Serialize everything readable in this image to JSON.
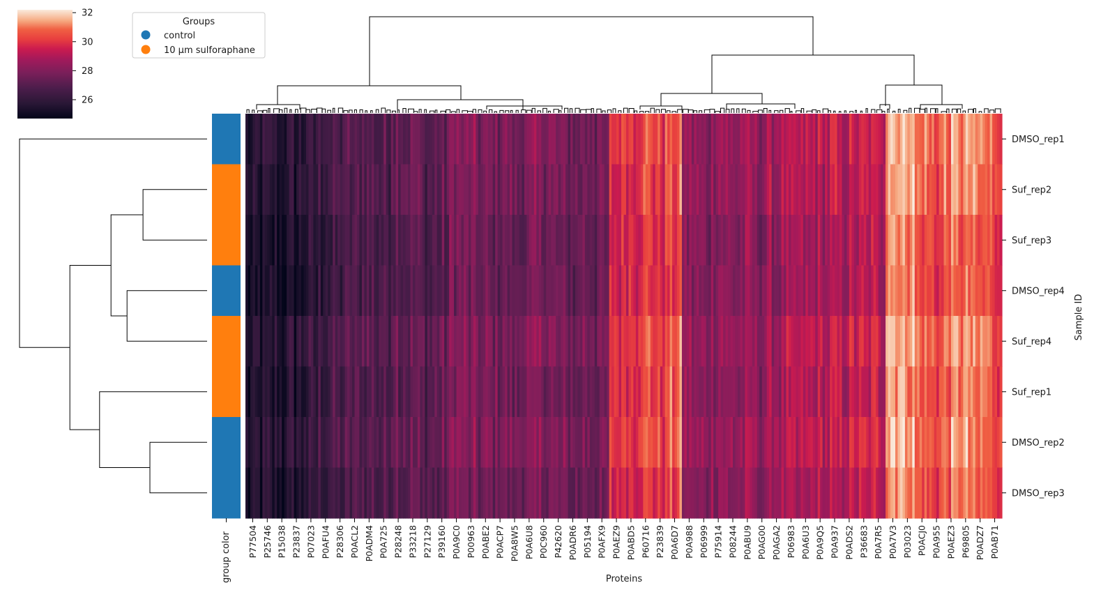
{
  "chart_data": {
    "type": "heatmap",
    "title": "",
    "xlabel": "Proteins",
    "ylabel": "Sample ID",
    "row_color_label": "group color",
    "rows": [
      "DMSO_rep1",
      "Suf_rep2",
      "Suf_rep3",
      "DMSO_rep4",
      "Suf_rep4",
      "Suf_rep1",
      "DMSO_rep2",
      "DMSO_rep3"
    ],
    "row_groups": [
      "control",
      "10 µm sulforaphane",
      "10 µm sulforaphane",
      "control",
      "10 µm sulforaphane",
      "10 µm sulforaphane",
      "control",
      "control"
    ],
    "x_tick_labels": [
      "P77504",
      "P25746",
      "P15038",
      "P23837",
      "P07023",
      "P0AFU4",
      "P28306",
      "P0ACL2",
      "P0ADM4",
      "P0A725",
      "P28248",
      "P33218",
      "P27129",
      "P39160",
      "P0A9C0",
      "P00963",
      "P0ABE2",
      "P0ACP7",
      "P0A8W5",
      "P0A6U8",
      "P0C960",
      "P42620",
      "P0ADR6",
      "P05194",
      "P0AFX9",
      "P0AEZ9",
      "P0ABD5",
      "P60716",
      "P23839",
      "P0A6D7",
      "P0A988",
      "P06999",
      "P75914",
      "P08244",
      "P0ABU9",
      "P0AG00",
      "P0AGA2",
      "P06983",
      "P0A6U3",
      "P0A9Q5",
      "P0A937",
      "P0ADS2",
      "P36683",
      "P0A7R5",
      "P0A7V3",
      "P03023",
      "P0ACJ0",
      "P0A955",
      "P0AEZ3",
      "P69805",
      "P0ADZ7",
      "P0AB71"
    ],
    "column_cluster_base_values": [
      25.3,
      25.5,
      25.4,
      25.6,
      25.9,
      26.3,
      26.6,
      26.9,
      27.0,
      26.8,
      27.4,
      27.3,
      27.0,
      27.2,
      28.0,
      27.8,
      27.6,
      27.7,
      27.5,
      27.8,
      27.9,
      27.6,
      27.5,
      27.7,
      27.4,
      29.8,
      30.1,
      30.3,
      30.0,
      30.5,
      28.3,
      28.1,
      28.5,
      28.2,
      28.4,
      28.3,
      28.6,
      28.7,
      28.8,
      28.9,
      29.0,
      29.1,
      29.2,
      29.3,
      31.6,
      31.4,
      30.6,
      30.4,
      30.8,
      31.0,
      30.7,
      30.5
    ],
    "colorbar": {
      "vmin": 24.7,
      "vmax": 32.2,
      "ticks": [
        26,
        28,
        30,
        32
      ],
      "tick_labels": [
        "26",
        "28",
        "30",
        "32"
      ],
      "colormap": "rocket"
    },
    "legend": {
      "title": "Groups",
      "placement": "top-left",
      "entries": [
        {
          "label": "control",
          "color": "#1f77b4"
        },
        {
          "label": "10 µm sulforaphane",
          "color": "#ff7f0e"
        }
      ]
    },
    "row_dendrogram_links": [
      {
        "a": 1,
        "b": 2,
        "h": 0.28
      },
      {
        "a": 6,
        "b": 7,
        "h": 0.25
      },
      {
        "a": 3,
        "b": 4,
        "h": 0.35
      },
      {
        "a": "n1",
        "b": "n3",
        "h": 0.42
      },
      {
        "a": 5,
        "b": "n2",
        "h": 0.47
      },
      {
        "a": "n4",
        "b": "n5",
        "h": 0.6
      },
      {
        "a": 0,
        "b": "n6",
        "h": 0.82
      }
    ]
  }
}
